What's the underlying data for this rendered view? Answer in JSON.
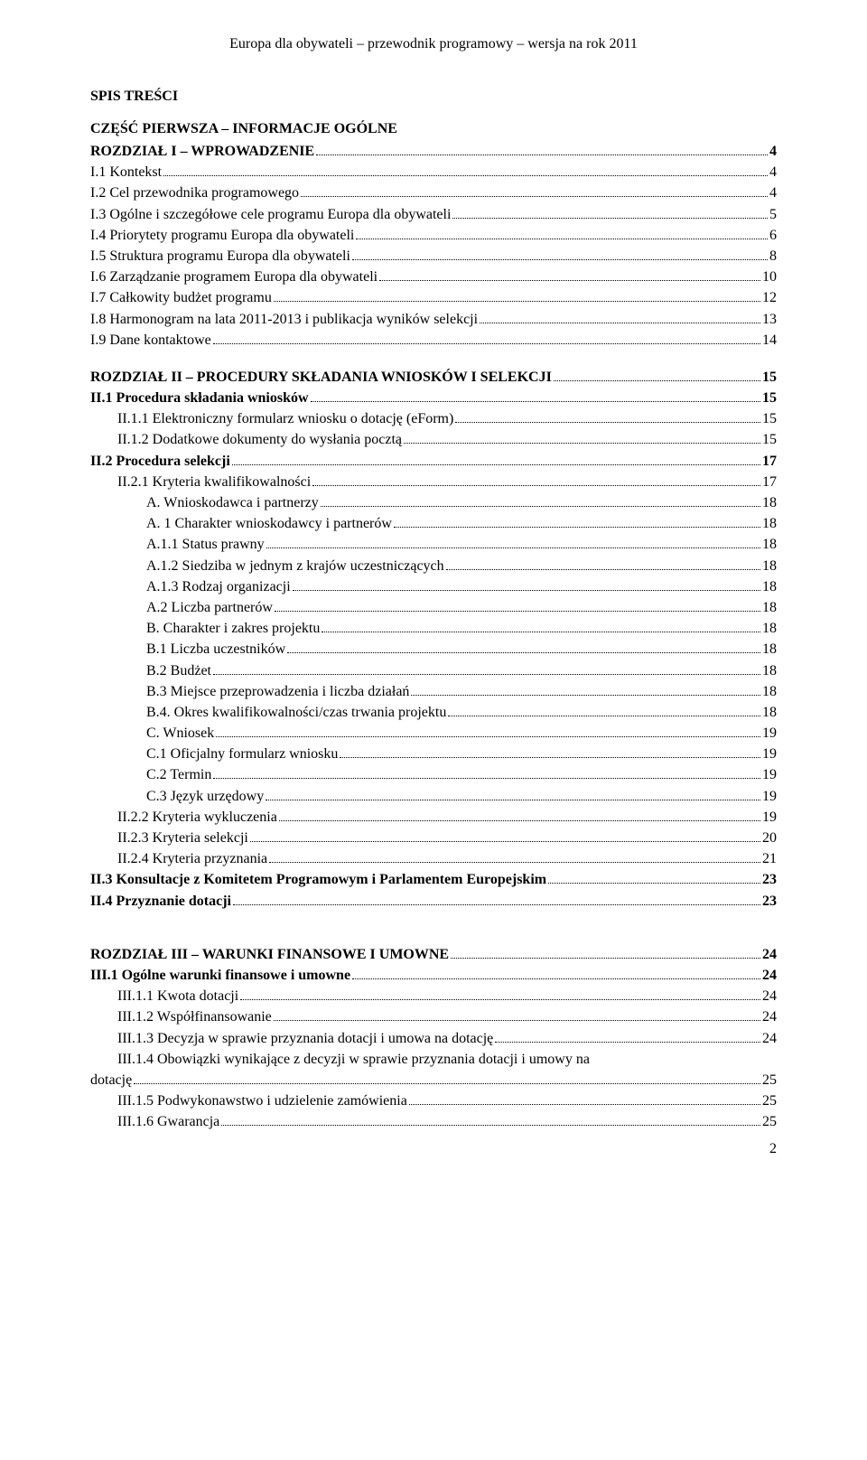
{
  "colors": {
    "background": "#ffffff",
    "text": "#000000"
  },
  "typography": {
    "font_family": "Times New Roman",
    "base_size_pt": 12
  },
  "header": "Europa dla obywateli – przewodnik programowy – wersja na rok 2011",
  "toc_title": "SPIS TREŚCI",
  "section_headings": {
    "part1": "CZĘŚĆ PIERWSZA – INFORMACJE OGÓLNE"
  },
  "entries": [
    {
      "label": "ROZDZIAŁ I – WPROWADZENIE",
      "page": "4",
      "bold": true,
      "indent": 0
    },
    {
      "label": "I.1 Kontekst",
      "page": "4",
      "bold": false,
      "indent": 0
    },
    {
      "label": "I.2 Cel przewodnika programowego",
      "page": "4",
      "bold": false,
      "indent": 0
    },
    {
      "label": "I.3 Ogólne i szczegółowe cele programu Europa dla obywateli",
      "page": "5",
      "bold": false,
      "indent": 0
    },
    {
      "label": "I.4 Priorytety programu Europa dla obywateli",
      "page": "6",
      "bold": false,
      "indent": 0
    },
    {
      "label": "I.5 Struktura programu Europa dla obywateli",
      "page": "8",
      "bold": false,
      "indent": 0
    },
    {
      "label": "I.6 Zarządzanie programem Europa dla obywateli",
      "page": "10",
      "bold": false,
      "indent": 0
    },
    {
      "label": "I.7 Całkowity budżet programu",
      "page": "12",
      "bold": false,
      "indent": 0
    },
    {
      "label": "I.8 Harmonogram na lata 2011-2013 i publikacja wyników selekcji",
      "page": "13",
      "bold": false,
      "indent": 0
    },
    {
      "label": "I.9 Dane kontaktowe",
      "page": "14",
      "bold": false,
      "indent": 0
    },
    {
      "label": "ROZDZIAŁ II – PROCEDURY SKŁADANIA WNIOSKÓW I SELEKCJI",
      "page": "15",
      "bold": true,
      "indent": 0
    },
    {
      "label": "II.1 Procedura składania wniosków",
      "page": "15",
      "bold": true,
      "indent": 0
    },
    {
      "label": "II.1.1 Elektroniczny formularz wniosku o dotację (eForm)",
      "page": "15",
      "bold": false,
      "indent": 1
    },
    {
      "label": "II.1.2 Dodatkowe dokumenty do wysłania pocztą",
      "page": "15",
      "bold": false,
      "indent": 1
    },
    {
      "label": "II.2 Procedura selekcji",
      "page": "17",
      "bold": true,
      "indent": 0
    },
    {
      "label": "II.2.1 Kryteria kwalifikowalności",
      "page": "17",
      "bold": false,
      "indent": 1
    },
    {
      "label": "A. Wnioskodawca i partnerzy",
      "page": "18",
      "bold": false,
      "indent": 2
    },
    {
      "label": "A. 1 Charakter wnioskodawcy i partnerów",
      "page": "18",
      "bold": false,
      "indent": 2
    },
    {
      "label": "A.1.1 Status prawny",
      "page": "18",
      "bold": false,
      "indent": 2
    },
    {
      "label": "A.1.2 Siedziba w jednym z krajów uczestniczących",
      "page": "18",
      "bold": false,
      "indent": 2
    },
    {
      "label": "A.1.3 Rodzaj organizacji",
      "page": "18",
      "bold": false,
      "indent": 2
    },
    {
      "label": "A.2 Liczba partnerów",
      "page": "18",
      "bold": false,
      "indent": 2
    },
    {
      "label": "B. Charakter i zakres projektu",
      "page": "18",
      "bold": false,
      "indent": 2
    },
    {
      "label": "B.1 Liczba uczestników",
      "page": "18",
      "bold": false,
      "indent": 2
    },
    {
      "label": "B.2 Budżet",
      "page": "18",
      "bold": false,
      "indent": 2
    },
    {
      "label": "B.3 Miejsce przeprowadzenia i liczba działań",
      "page": "18",
      "bold": false,
      "indent": 2
    },
    {
      "label": "B.4. Okres kwalifikowalności/czas trwania projektu",
      "page": "18",
      "bold": false,
      "indent": 2
    },
    {
      "label": "C.  Wniosek",
      "page": "19",
      "bold": false,
      "indent": 2
    },
    {
      "label": "C.1 Oficjalny formularz wniosku",
      "page": "19",
      "bold": false,
      "indent": 2
    },
    {
      "label": "C.2 Termin",
      "page": "19",
      "bold": false,
      "indent": 2
    },
    {
      "label": "C.3 Język urzędowy",
      "page": "19",
      "bold": false,
      "indent": 2
    },
    {
      "label": "II.2.2 Kryteria wykluczenia",
      "page": "19",
      "bold": false,
      "indent": 1
    },
    {
      "label": "II.2.3 Kryteria selekcji",
      "page": "20",
      "bold": false,
      "indent": 1
    },
    {
      "label": "II.2.4 Kryteria przyznania",
      "page": "21",
      "bold": false,
      "indent": 1
    },
    {
      "label": "II.3 Konsultacje z Komitetem Programowym i Parlamentem Europejskim",
      "page": "23",
      "bold": true,
      "indent": 0
    },
    {
      "label": "II.4 Przyznanie dotacji",
      "page": "23",
      "bold": true,
      "indent": 0
    },
    {
      "label": "ROZDZIAŁ III – WARUNKI FINANSOWE I UMOWNE",
      "page": "24",
      "bold": true,
      "indent": 0
    },
    {
      "label": "III.1 Ogólne warunki finansowe i umowne",
      "page": "24",
      "bold": true,
      "indent": 0
    },
    {
      "label": "III.1.1 Kwota dotacji",
      "page": "24",
      "bold": false,
      "indent": 1
    },
    {
      "label": "III.1.2 Współfinansowanie",
      "page": "24",
      "bold": false,
      "indent": 1
    },
    {
      "label": "III.1.3 Decyzja w sprawie przyznania dotacji i umowa na dotację",
      "page": "24",
      "bold": false,
      "indent": 1
    },
    {
      "label_prefix": "III.1.4 Obowiązki wynikające z decyzji w sprawie przyznania dotacji i umowy na",
      "label": "dotację",
      "page": "25",
      "bold": false,
      "indent": 1,
      "wrapped": true
    },
    {
      "label": "III.1.5 Podwykonawstwo i udzielenie zamówienia",
      "page": "25",
      "bold": false,
      "indent": 1
    },
    {
      "label": "III.1.6 Gwarancja",
      "page": "25",
      "bold": false,
      "indent": 1
    }
  ],
  "footer_page_number": "2",
  "spacing": {
    "gap_before_rozdzial2": true,
    "gap_before_rozdzial3": true
  }
}
